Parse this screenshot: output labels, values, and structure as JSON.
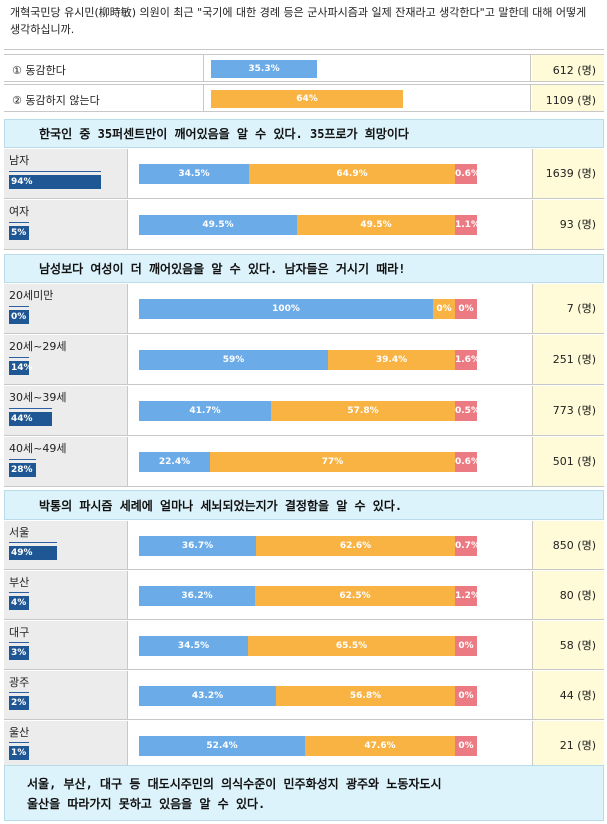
{
  "colors": {
    "agree": "#6aabe8",
    "disagree": "#f8b343",
    "none": "#ec7a82",
    "group_pct": "#1f5795"
  },
  "question": "개혁국민당 유시민(柳時敏) 의원이 최근 \"국기에 대한 경례 등은 군사파시즘과 일제 잔재라고 생각한다\"고 말한데 대해 어떻게 생각하십니까.",
  "options": [
    {
      "label": "① 동감한다",
      "value": 35.3,
      "value_text": "35.3%",
      "count": "612 (명)",
      "color": "#6aabe8"
    },
    {
      "label": "② 동감하지 않는다",
      "value": 64,
      "value_text": "64%",
      "count": "1109 (명)",
      "color": "#f8b343"
    }
  ],
  "chart_data": {
    "type": "bar",
    "stacked": true,
    "series": [
      {
        "name": "① 동감한다"
      },
      {
        "name": "② 동감하지 않는다"
      },
      {
        "name": ""
      }
    ],
    "sections": [
      {
        "banner": "한국인 중 35퍼센트만이 깨어있음을 알 수 있다. 35프로가 희망이다",
        "groups": [
          {
            "name": "남자",
            "share": "94%",
            "share_value": 94,
            "values": [
              34.5,
              64.9,
              0.6
            ],
            "labels": [
              "34.5%",
              "64.9%",
              "0.6%"
            ],
            "count": "1639 (명)"
          },
          {
            "name": "여자",
            "share": "5%",
            "share_value": 5,
            "values": [
              49.5,
              49.5,
              1.1
            ],
            "labels": [
              "49.5%",
              "49.5%",
              "1.1%"
            ],
            "count": "93 (명)"
          }
        ]
      },
      {
        "banner": "남성보다 여성이 더 깨어있음을 알 수 있다. 남자들은 거시기 때라!",
        "groups": [
          {
            "name": "20세미만",
            "share": "0%",
            "share_value": 0,
            "values": [
              100,
              0,
              0
            ],
            "labels": [
              "100%",
              "0%",
              "0%"
            ],
            "count": "7 (명)"
          },
          {
            "name": "20세~29세",
            "share": "14%",
            "share_value": 14,
            "values": [
              59,
              39.4,
              1.6
            ],
            "labels": [
              "59%",
              "39.4%",
              "1.6%"
            ],
            "count": "251 (명)"
          },
          {
            "name": "30세~39세",
            "share": "44%",
            "share_value": 44,
            "values": [
              41.7,
              57.8,
              0.5
            ],
            "labels": [
              "41.7%",
              "57.8%",
              "0.5%"
            ],
            "count": "773 (명)"
          },
          {
            "name": "40세~49세",
            "share": "28%",
            "share_value": 28,
            "values": [
              22.4,
              77,
              0.6
            ],
            "labels": [
              "22.4%",
              "77%",
              "0.6%"
            ],
            "count": "501 (명)"
          }
        ]
      },
      {
        "banner": "박통의 파시즘 세례에 얼마나 세뇌되었는지가 결정함을 알 수 있다.",
        "groups": [
          {
            "name": "서울",
            "share": "49%",
            "share_value": 49,
            "values": [
              36.7,
              62.6,
              0.7
            ],
            "labels": [
              "36.7%",
              "62.6%",
              "0.7%"
            ],
            "count": "850 (명)"
          },
          {
            "name": "부산",
            "share": "4%",
            "share_value": 4,
            "values": [
              36.2,
              62.5,
              1.2
            ],
            "labels": [
              "36.2%",
              "62.5%",
              "1.2%"
            ],
            "count": "80 (명)"
          },
          {
            "name": "대구",
            "share": "3%",
            "share_value": 3,
            "values": [
              34.5,
              65.5,
              0
            ],
            "labels": [
              "34.5%",
              "65.5%",
              "0%"
            ],
            "count": "58 (명)"
          },
          {
            "name": "광주",
            "share": "2%",
            "share_value": 2,
            "values": [
              43.2,
              56.8,
              0
            ],
            "labels": [
              "43.2%",
              "56.8%",
              "0%"
            ],
            "count": "44 (명)"
          },
          {
            "name": "울산",
            "share": "1%",
            "share_value": 1,
            "values": [
              52.4,
              47.6,
              0
            ],
            "labels": [
              "52.4%",
              "47.6%",
              "0%"
            ],
            "count": "21 (명)"
          }
        ]
      }
    ],
    "footer": [
      "서울, 부산, 대구 등 대도시주민의 의식수준이 민주화성지 광주와 노동자도시",
      "울산을 따라가지 못하고 있음을 알 수 있다."
    ]
  }
}
